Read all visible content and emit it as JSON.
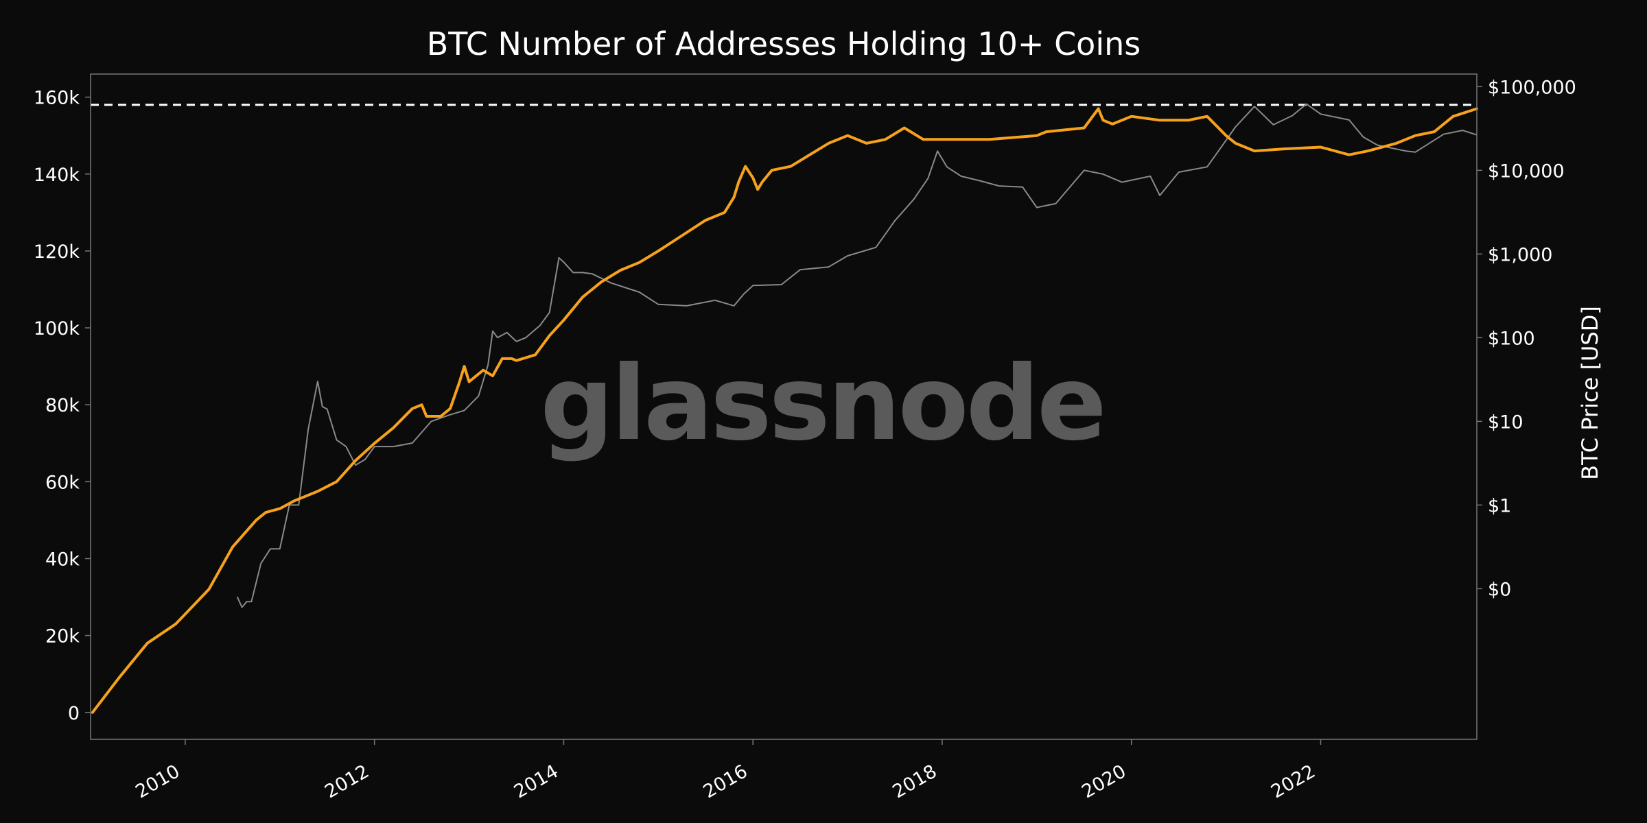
{
  "chart_data": {
    "type": "line",
    "title": "BTC Number of Addresses Holding 10+ Coins",
    "watermark": "glassnode",
    "ylabel_right": "BTC Price [USD]",
    "xlim": [
      2009.0,
      2023.65
    ],
    "ylim_left": [
      -7000,
      166000
    ],
    "ylim_right_log10": [
      -2.8,
      5.15
    ],
    "x_ticks": [
      2010,
      2012,
      2014,
      2016,
      2018,
      2020,
      2022
    ],
    "x_tick_labels": [
      "2010",
      "2012",
      "2014",
      "2016",
      "2018",
      "2020",
      "2022"
    ],
    "y_ticks_left": [
      0,
      20000,
      40000,
      60000,
      80000,
      100000,
      120000,
      140000,
      160000
    ],
    "y_tick_labels_left": [
      "0",
      "20k",
      "40k",
      "60k",
      "80k",
      "100k",
      "120k",
      "140k",
      "160k"
    ],
    "y_ticks_right_log10": [
      -1,
      0,
      1,
      2,
      3,
      4,
      5
    ],
    "y_tick_labels_right": [
      "$0",
      "$1",
      "$10",
      "$100",
      "$1,000",
      "$10,000",
      "$100,000"
    ],
    "reference_line": {
      "value": 158000,
      "style": "dashed",
      "color": "#ffffff"
    },
    "colors": {
      "addresses": "#f7a21b",
      "price": "#8a8a8a",
      "background": "#0b0b0b",
      "frame": "#777777"
    },
    "series": [
      {
        "key": "addresses",
        "axis": "left",
        "x": [
          2009.02,
          2009.3,
          2009.6,
          2009.9,
          2010.25,
          2010.5,
          2010.75,
          2010.85,
          2011.0,
          2011.15,
          2011.25,
          2011.4,
          2011.6,
          2011.8,
          2012.0,
          2012.2,
          2012.4,
          2012.5,
          2012.55,
          2012.7,
          2012.8,
          2012.9,
          2012.95,
          2013.0,
          2013.15,
          2013.25,
          2013.35,
          2013.45,
          2013.5,
          2013.7,
          2013.85,
          2014.0,
          2014.2,
          2014.4,
          2014.6,
          2014.8,
          2015.0,
          2015.25,
          2015.5,
          2015.7,
          2015.8,
          2015.85,
          2015.92,
          2016.0,
          2016.05,
          2016.1,
          2016.2,
          2016.4,
          2016.6,
          2016.8,
          2017.0,
          2017.2,
          2017.4,
          2017.6,
          2017.8,
          2018.0,
          2018.1,
          2018.5,
          2019.0,
          2019.1,
          2019.5,
          2019.65,
          2019.7,
          2019.8,
          2020.0,
          2020.3,
          2020.6,
          2020.8,
          2021.0,
          2021.1,
          2021.3,
          2021.6,
          2022.0,
          2022.3,
          2022.5,
          2022.8,
          2023.0,
          2023.2,
          2023.4,
          2023.65
        ],
        "values": [
          0,
          9000,
          18000,
          23000,
          32000,
          43000,
          50000,
          52000,
          53000,
          55000,
          56000,
          57500,
          60000,
          65500,
          70000,
          74000,
          79000,
          80000,
          77000,
          77000,
          79000,
          86000,
          90000,
          86000,
          89000,
          87500,
          92000,
          92000,
          91500,
          93000,
          98000,
          102000,
          108000,
          112000,
          115000,
          117000,
          120000,
          124000,
          128000,
          130000,
          134000,
          138000,
          142000,
          139000,
          136000,
          138000,
          141000,
          142000,
          145000,
          148000,
          150000,
          148000,
          149000,
          152000,
          149000,
          149000,
          149000,
          149000,
          150000,
          151000,
          152000,
          157000,
          154000,
          153000,
          155000,
          154000,
          154000,
          155000,
          150000,
          148000,
          146000,
          146500,
          147000,
          145000,
          146000,
          148000,
          150000,
          151000,
          155000,
          157000
        ]
      },
      {
        "key": "price",
        "axis": "right",
        "scale": "log",
        "x": [
          2010.55,
          2010.6,
          2010.65,
          2010.7,
          2010.8,
          2010.9,
          2011.0,
          2011.1,
          2011.2,
          2011.3,
          2011.4,
          2011.45,
          2011.5,
          2011.6,
          2011.7,
          2011.8,
          2011.9,
          2012.0,
          2012.2,
          2012.4,
          2012.6,
          2012.8,
          2012.95,
          2013.1,
          2013.2,
          2013.25,
          2013.3,
          2013.4,
          2013.5,
          2013.6,
          2013.75,
          2013.85,
          2013.95,
          2014.0,
          2014.1,
          2014.2,
          2014.3,
          2014.5,
          2014.8,
          2015.0,
          2015.3,
          2015.6,
          2015.8,
          2015.9,
          2016.0,
          2016.3,
          2016.5,
          2016.8,
          2017.0,
          2017.3,
          2017.5,
          2017.7,
          2017.85,
          2017.95,
          2018.05,
          2018.2,
          2018.4,
          2018.6,
          2018.85,
          2019.0,
          2019.2,
          2019.5,
          2019.7,
          2019.9,
          2020.2,
          2020.3,
          2020.5,
          2020.8,
          2020.95,
          2021.1,
          2021.3,
          2021.5,
          2021.7,
          2021.85,
          2022.0,
          2022.3,
          2022.45,
          2022.6,
          2022.9,
          2023.0,
          2023.3,
          2023.5,
          2023.65
        ],
        "values": [
          0.08,
          0.06,
          0.07,
          0.07,
          0.2,
          0.3,
          0.3,
          1.0,
          1.0,
          8.0,
          30.0,
          15.0,
          14.0,
          6.0,
          5.0,
          3.0,
          3.5,
          5.0,
          5.0,
          5.5,
          10.0,
          12.0,
          13.5,
          20.0,
          47.0,
          120.0,
          100.0,
          115.0,
          90.0,
          100.0,
          140.0,
          200.0,
          900.0,
          800.0,
          600.0,
          600.0,
          580.0,
          450.0,
          350.0,
          250.0,
          240.0,
          280.0,
          240.0,
          330.0,
          420.0,
          430.0,
          650.0,
          700.0,
          950.0,
          1200.0,
          2500.0,
          4500.0,
          8000.0,
          17000.0,
          11000.0,
          8500.0,
          7500.0,
          6500.0,
          6300.0,
          3600.0,
          4000.0,
          10000.0,
          9000.0,
          7200.0,
          8500.0,
          5000.0,
          9500.0,
          11000.0,
          19000.0,
          33000.0,
          58000.0,
          35000.0,
          45000.0,
          62000.0,
          47000.0,
          40000.0,
          25000.0,
          20000.0,
          17000.0,
          16500.0,
          27000.0,
          30000.0,
          26500.0
        ]
      }
    ]
  }
}
